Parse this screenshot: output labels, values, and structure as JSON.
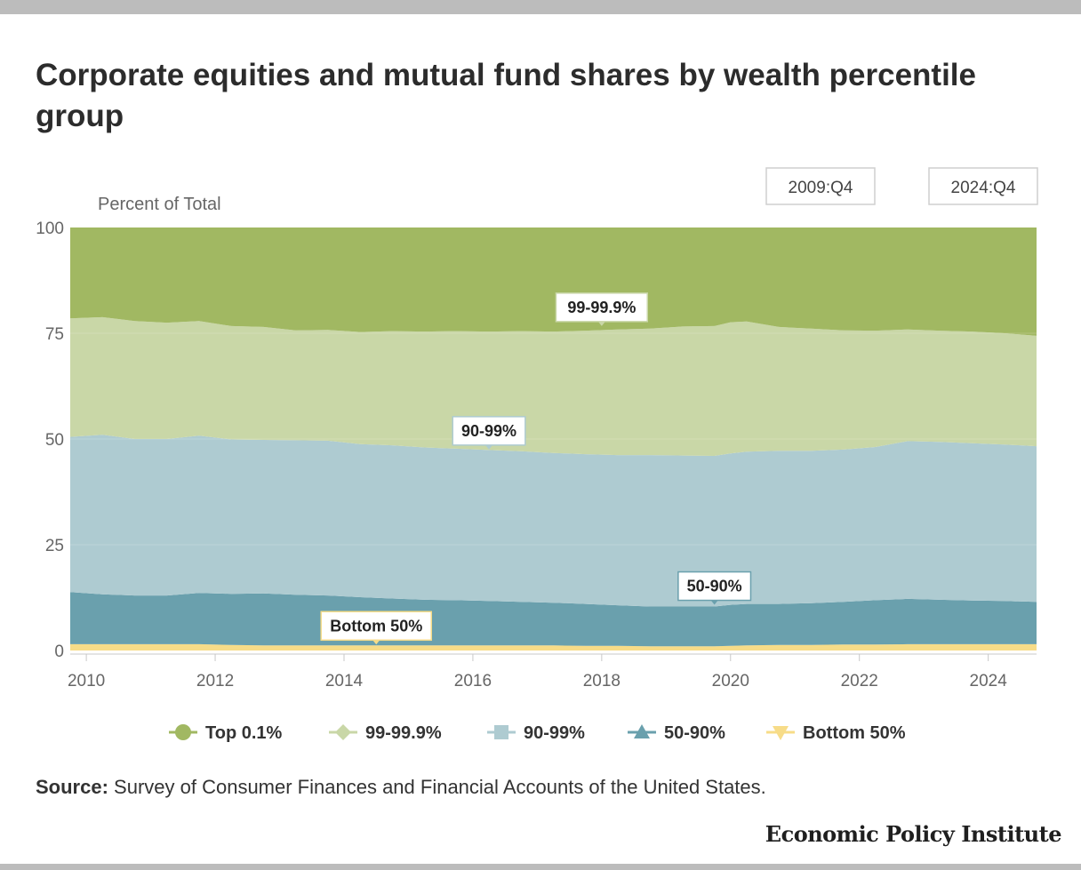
{
  "title": "Corporate equities and mutual fund shares by wealth percentile group",
  "source_label": "Source:",
  "source_text": "Survey of Consumer Finances and Financial Accounts of the United States.",
  "brand": "Economic Policy Institute",
  "chart_data": {
    "type": "area",
    "stacked": true,
    "ylabel": "Percent of Total",
    "ylim": [
      0,
      100
    ],
    "yticks": [
      0,
      25,
      50,
      75,
      100
    ],
    "xlim": [
      2009.75,
      2024.75
    ],
    "xticks": [
      2010,
      2012,
      2014,
      2016,
      2018,
      2020,
      2022,
      2024
    ],
    "grid": true,
    "legend_position": "bottom",
    "range_buttons": [
      "2009:Q4",
      "2024:Q4"
    ],
    "x": [
      2009.75,
      2010.25,
      2010.75,
      2011.25,
      2011.75,
      2012.25,
      2012.75,
      2013.25,
      2013.75,
      2014.25,
      2014.75,
      2015.25,
      2015.75,
      2016.25,
      2016.75,
      2017.25,
      2017.75,
      2018.25,
      2018.75,
      2019.25,
      2019.75,
      2020.0,
      2020.25,
      2020.75,
      2021.25,
      2021.75,
      2022.25,
      2022.75,
      2023.25,
      2023.75,
      2024.25,
      2024.75
    ],
    "series": [
      {
        "name": "Bottom 50%",
        "color": "#f7dc88",
        "marker": "triangle-down",
        "values": [
          1.5,
          1.5,
          1.5,
          1.5,
          1.5,
          1.3,
          1.2,
          1.2,
          1.2,
          1.2,
          1.2,
          1.2,
          1.2,
          1.2,
          1.2,
          1.2,
          1.1,
          1.1,
          1.0,
          1.0,
          1.0,
          1.1,
          1.2,
          1.3,
          1.3,
          1.4,
          1.4,
          1.5,
          1.5,
          1.5,
          1.5,
          1.5
        ]
      },
      {
        "name": "50-90%",
        "color": "#6aa0ad",
        "marker": "triangle",
        "values": [
          12.3,
          11.8,
          11.5,
          11.5,
          12.1,
          12.1,
          12.3,
          12.0,
          11.8,
          11.4,
          11.1,
          10.8,
          10.7,
          10.5,
          10.3,
          10.1,
          9.9,
          9.6,
          9.4,
          9.4,
          9.4,
          9.7,
          9.8,
          9.7,
          9.9,
          10.1,
          10.5,
          10.7,
          10.5,
          10.3,
          10.2,
          10.0
        ]
      },
      {
        "name": "90-99%",
        "color": "#aecbd1",
        "marker": "square",
        "values": [
          36.7,
          37.7,
          37.0,
          37.0,
          37.2,
          36.5,
          36.3,
          36.5,
          36.6,
          36.2,
          36.2,
          36.0,
          35.8,
          35.7,
          35.6,
          35.4,
          35.4,
          35.5,
          35.8,
          35.7,
          35.6,
          35.8,
          36.0,
          36.2,
          36.0,
          36.0,
          36.2,
          37.3,
          37.3,
          37.2,
          37.0,
          36.8
        ]
      },
      {
        "name": "99-99.9%",
        "color": "#c9d7a7",
        "marker": "diamond",
        "values": [
          28.0,
          27.8,
          27.9,
          27.5,
          27.1,
          26.8,
          26.7,
          26.0,
          26.2,
          26.5,
          27.0,
          27.4,
          27.8,
          28.0,
          28.4,
          28.7,
          29.2,
          29.7,
          29.9,
          30.5,
          30.7,
          31.0,
          30.8,
          29.3,
          28.9,
          28.2,
          27.5,
          26.4,
          26.3,
          26.4,
          26.3,
          26.1
        ]
      },
      {
        "name": "Top 0.1%",
        "color": "#a1b862",
        "marker": "circle",
        "values": [
          21.5,
          21.2,
          22.1,
          22.5,
          22.1,
          23.3,
          23.5,
          24.3,
          24.2,
          24.7,
          24.5,
          24.6,
          24.5,
          24.6,
          24.5,
          24.6,
          24.4,
          24.1,
          23.9,
          23.4,
          23.3,
          22.4,
          22.2,
          23.5,
          23.9,
          24.3,
          24.4,
          24.1,
          24.4,
          24.6,
          25.0,
          25.6
        ]
      }
    ],
    "annotations": [
      {
        "text": "99-99.9%",
        "x": 2018.0,
        "y": 76.5
      },
      {
        "text": "90-99%",
        "x": 2016.25,
        "y": 47.3
      },
      {
        "text": "50-90%",
        "x": 2019.75,
        "y": 10.6
      },
      {
        "text": "Bottom 50%",
        "x": 2014.5,
        "y": 1.2
      }
    ],
    "legend": [
      "Top 0.1%",
      "99-99.9%",
      "90-99%",
      "50-90%",
      "Bottom 50%"
    ]
  }
}
